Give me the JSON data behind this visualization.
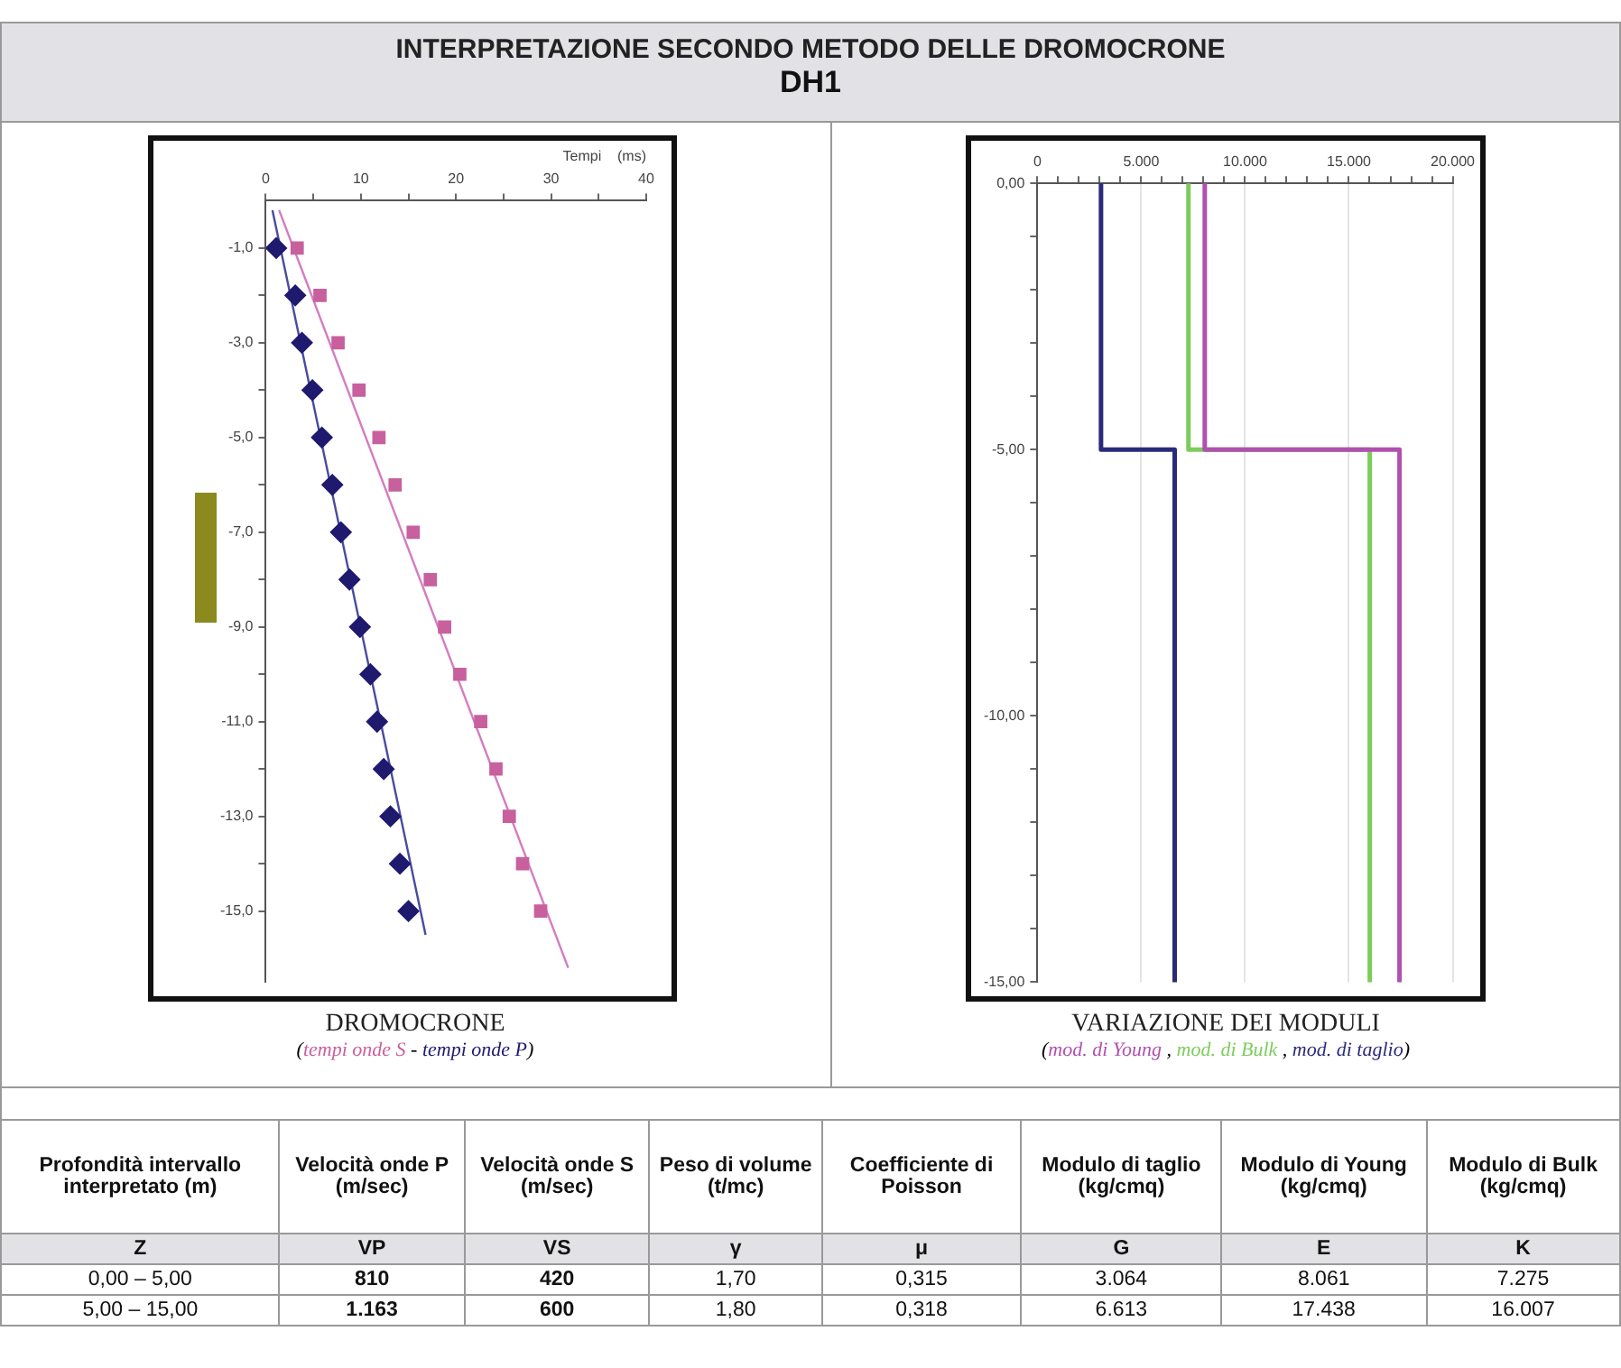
{
  "chart_data": [
    {
      "type": "other",
      "title": "INTERPRETAZIONE SECONDO METODO DELLE DROMOCRONE",
      "subtitle": "DH1"
    },
    {
      "type": "scatter",
      "title": "DROMOCRONE",
      "xlabel": "Tempi    (ms)",
      "xlim": [
        0,
        40
      ],
      "xticks": [
        0,
        {
          "value": 5,
          "label": null
        },
        10,
        {
          "value": 15,
          "label": null
        },
        20,
        {
          "value": 25,
          "label": null
        },
        30,
        {
          "value": 35,
          "label": null
        },
        40
      ],
      "ylim": [
        -16.5,
        0
      ],
      "yticks": [
        {
          "value": -1,
          "label": "-1,0"
        },
        {
          "value": -2,
          "label": null
        },
        {
          "value": -3,
          "label": "-3,0"
        },
        {
          "value": -4,
          "label": null
        },
        {
          "value": -5,
          "label": "-5,0"
        },
        {
          "value": -6,
          "label": null
        },
        {
          "value": -7,
          "label": "-7,0"
        },
        {
          "value": -8,
          "label": null
        },
        {
          "value": -9,
          "label": "-9,0"
        },
        {
          "value": -10,
          "label": null
        },
        {
          "value": -11,
          "label": "-11,0"
        },
        {
          "value": -12,
          "label": null
        },
        {
          "value": -13,
          "label": "-13,0"
        },
        {
          "value": -14,
          "label": null
        },
        {
          "value": -15,
          "label": "-15,0"
        }
      ],
      "grid": false,
      "legend": "bottom",
      "annotations": [
        "(",
        "- ",
        ")"
      ],
      "series": [
        {
          "name": "tempi onde S",
          "color": "#c8609e",
          "marker": "square",
          "x": [
            3.3,
            5.7,
            7.6,
            9.8,
            11.9,
            13.6,
            15.5,
            17.3,
            18.8,
            20.4,
            22.6,
            24.2,
            25.6,
            27.0,
            28.9
          ],
          "values": [
            -1,
            -2,
            -3,
            -4,
            -5,
            -6,
            -7,
            -8,
            -9,
            -10,
            -11,
            -12,
            -13,
            -14,
            -15
          ]
        },
        {
          "name": "tempi onde P",
          "color": "#1f1a6e",
          "marker": "diamond",
          "x": [
            1.1,
            3.1,
            3.8,
            4.9,
            5.9,
            7.0,
            7.9,
            8.8,
            9.9,
            11.0,
            11.7,
            12.4,
            13.1,
            14.1,
            15.0
          ],
          "values": [
            -1,
            -2,
            -3,
            -4,
            -5,
            -6,
            -7,
            -8,
            -9,
            -10,
            -11,
            -12,
            -13,
            -14,
            -15
          ]
        },
        {
          "type": "line",
          "color": "#d47cc0",
          "marker": "none",
          "x": [
            1.4,
            31.8
          ],
          "values": [
            -0.2,
            -16.2
          ]
        },
        {
          "type": "line",
          "color": "#4a4aa0",
          "marker": "none",
          "x": [
            0.7,
            16.8
          ],
          "values": [
            -0.2,
            -15.5
          ]
        }
      ]
    },
    {
      "type": "line",
      "title": "VARIAZIONE DEI MODULI",
      "xlim": [
        0,
        20000
      ],
      "xticks": [
        0,
        {
          "value": 1000,
          "label": null
        },
        {
          "value": 2000,
          "label": null
        },
        {
          "value": 3000,
          "label": null
        },
        {
          "value": 4000,
          "label": null
        },
        {
          "value": 5000,
          "label": "5.000"
        },
        {
          "value": 6000,
          "label": null
        },
        {
          "value": 7000,
          "label": null
        },
        {
          "value": 8000,
          "label": null
        },
        {
          "value": 9000,
          "label": null
        },
        {
          "value": 10000,
          "label": "10.000"
        },
        {
          "value": 11000,
          "label": null
        },
        {
          "value": 12000,
          "label": null
        },
        {
          "value": 13000,
          "label": null
        },
        {
          "value": 14000,
          "label": null
        },
        {
          "value": 15000,
          "label": "15.000"
        },
        {
          "value": 16000,
          "label": null
        },
        {
          "value": 17000,
          "label": null
        },
        {
          "value": 18000,
          "label": null
        },
        {
          "value": 19000,
          "label": null
        },
        {
          "value": 20000,
          "label": "20.000"
        }
      ],
      "ylim": [
        -15,
        0
      ],
      "yticks": [
        {
          "value": 0,
          "label": "0,00"
        },
        {
          "value": -1,
          "label": null
        },
        {
          "value": -2,
          "label": null
        },
        {
          "value": -3,
          "label": null
        },
        {
          "value": -4,
          "label": null
        },
        {
          "value": -5,
          "label": "-5,00"
        },
        {
          "value": -6,
          "label": null
        },
        {
          "value": -7,
          "label": null
        },
        {
          "value": -8,
          "label": null
        },
        {
          "value": -9,
          "label": null
        },
        {
          "value": -10,
          "label": "-10,00"
        },
        {
          "value": -11,
          "label": null
        },
        {
          "value": -12,
          "label": null
        },
        {
          "value": -13,
          "label": null
        },
        {
          "value": -14,
          "label": null
        },
        {
          "value": -15,
          "label": "-15,00"
        }
      ],
      "grid": "x",
      "legend": "bottom",
      "annotations": [
        "(",
        ", ",
        ", ",
        ")"
      ],
      "marker": "none",
      "line_style": "solid",
      "series": [
        {
          "name": "mod. di Young",
          "color": "#b050b0",
          "x": [
            8061,
            8061,
            17438,
            17438
          ],
          "values": [
            0,
            -5,
            -5,
            -15
          ]
        },
        {
          "name": "mod. di Bulk",
          "color": "#7ccc5c",
          "x": [
            7275,
            7275,
            16007,
            16007
          ],
          "values": [
            0,
            -5,
            -5,
            -15
          ]
        },
        {
          "name": "mod. di taglio",
          "color": "#2a2a7a",
          "x": [
            3064,
            3064,
            6613,
            6613
          ],
          "values": [
            0,
            -5,
            -5,
            -15
          ]
        }
      ]
    },
    {
      "type": "other",
      "annotations": [
        "Profondità intervallo interpretato (m)",
        "Velocità onde P (m/sec)",
        "Velocità onde S (m/sec)",
        "Peso di volume (t/mc)",
        "Coefficiente di Poisson",
        "Modulo di taglio (kg/cmq)",
        "Modulo di Young (kg/cmq)",
        "Modulo di Bulk (kg/cmq)",
        "Z",
        "VP",
        "VS",
        "γ",
        "μ",
        "G",
        "E",
        "K",
        "0,00 – 5,00",
        "810",
        "420",
        "1,70",
        "0,315",
        "3.064",
        "8.061",
        "7.275",
        "5,00 – 15,00",
        "1.163",
        "600",
        "1,80",
        "0,318",
        "6.613",
        "17.438",
        "16.007"
      ]
    }
  ]
}
